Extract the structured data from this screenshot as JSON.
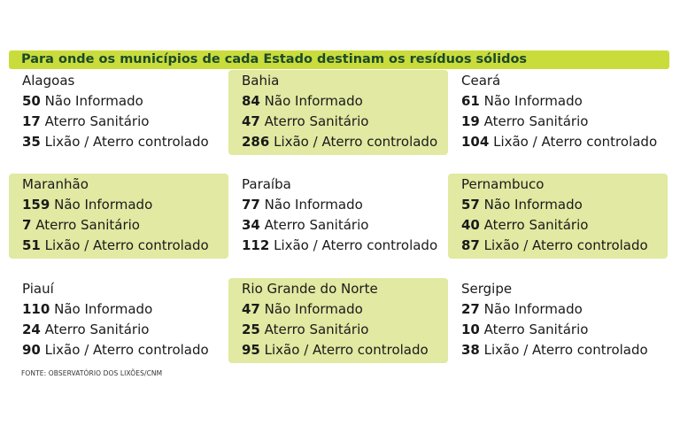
{
  "title": "Para onde os municípios de cada Estado destinam os resíduos sólidos",
  "states": [
    {
      "name": "Alagoas",
      "highlight": false,
      "rows": [
        {
          "value": "50",
          "label": "Não Informado"
        },
        {
          "value": "17",
          "label": "Aterro Sanitário"
        },
        {
          "value": "35",
          "label": "Lixão / Aterro controlado"
        }
      ]
    },
    {
      "name": "Bahia",
      "highlight": true,
      "rows": [
        {
          "value": "84",
          "label": "Não Informado"
        },
        {
          "value": "47",
          "label": "Aterro Sanitário"
        },
        {
          "value": "286",
          "label": "Lixão / Aterro controlado"
        }
      ]
    },
    {
      "name": "Ceará",
      "highlight": false,
      "rows": [
        {
          "value": "61",
          "label": "Não Informado"
        },
        {
          "value": "19",
          "label": "Aterro Sanitário"
        },
        {
          "value": "104",
          "label": "Lixão / Aterro controlado"
        }
      ]
    },
    {
      "name": "Maranhão",
      "highlight": true,
      "rows": [
        {
          "value": "159",
          "label": "Não Informado"
        },
        {
          "value": "7",
          "label": "Aterro Sanitário"
        },
        {
          "value": "51",
          "label": "Lixão / Aterro controlado"
        }
      ]
    },
    {
      "name": "Paraíba",
      "highlight": false,
      "rows": [
        {
          "value": "77",
          "label": "Não Informado"
        },
        {
          "value": "34",
          "label": "Aterro Sanitário"
        },
        {
          "value": "112",
          "label": "Lixão / Aterro controlado"
        }
      ]
    },
    {
      "name": "Pernambuco",
      "highlight": true,
      "rows": [
        {
          "value": "57",
          "label": "Não Informado"
        },
        {
          "value": "40",
          "label": "Aterro Sanitário"
        },
        {
          "value": "87",
          "label": "Lixão / Aterro controlado"
        }
      ]
    },
    {
      "name": "Piauí",
      "highlight": false,
      "rows": [
        {
          "value": "110",
          "label": "Não Informado"
        },
        {
          "value": "24",
          "label": "Aterro Sanitário"
        },
        {
          "value": "90",
          "label": "Lixão / Aterro controlado"
        }
      ]
    },
    {
      "name": "Rio Grande do Norte",
      "highlight": true,
      "rows": [
        {
          "value": "47",
          "label": "Não Informado"
        },
        {
          "value": "25",
          "label": "Aterro Sanitário"
        },
        {
          "value": "95",
          "label": "Lixão / Aterro controlado"
        }
      ]
    },
    {
      "name": "Sergipe",
      "highlight": false,
      "rows": [
        {
          "value": "27",
          "label": "Não Informado"
        },
        {
          "value": "10",
          "label": "Aterro Sanitário"
        },
        {
          "value": "38",
          "label": "Lixão / Aterro controlado"
        }
      ]
    }
  ],
  "source": "FONTE: OBSERVATÓRIO DOS LIXÕES/CNM",
  "colors": {
    "title_bar": "#c9dc3c",
    "title_text": "#1b4a2b",
    "highlight_cell": "#e1e9a2"
  }
}
